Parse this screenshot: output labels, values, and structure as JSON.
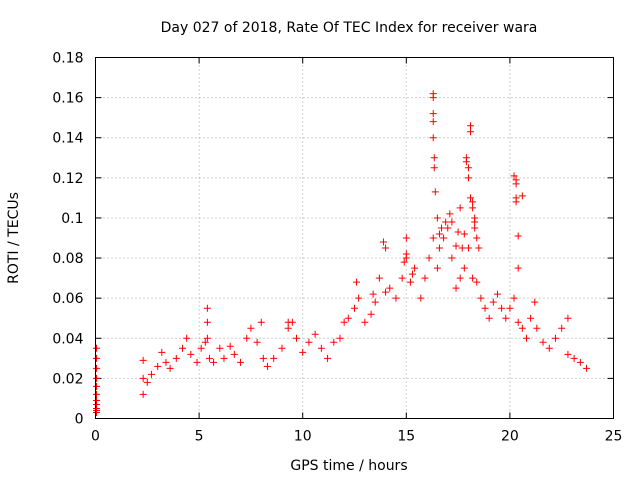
{
  "chart_data": {
    "type": "scatter",
    "title": "Day 027 of 2018, Rate Of TEC Index for receiver wara",
    "xlabel": "GPS time / hours",
    "ylabel": "ROTI / TECUs",
    "xlim": [
      0,
      25
    ],
    "ylim": [
      0,
      0.18
    ],
    "xticks": [
      0,
      5,
      10,
      15,
      20,
      25
    ],
    "xtick_labels": [
      "0",
      "5",
      "10",
      "15",
      "20",
      "25"
    ],
    "yticks": [
      0,
      0.02,
      0.04,
      0.06,
      0.08,
      0.1,
      0.12,
      0.14,
      0.16,
      0.18
    ],
    "ytick_labels": [
      "0",
      "0.02",
      "0.04",
      "0.06",
      "0.08",
      "0.1",
      "0.12",
      "0.14",
      "0.16",
      "0.18"
    ],
    "grid": true,
    "marker": "+",
    "color": "#ff0000",
    "series": [
      {
        "name": "ROTI",
        "x": [
          0.05,
          0.05,
          0.05,
          0.05,
          0.05,
          0.05,
          0.05,
          0.05,
          0.05,
          0.05,
          0.05,
          2.3,
          2.3,
          2.3,
          2.5,
          2.7,
          3.0,
          3.2,
          3.4,
          3.6,
          3.9,
          4.2,
          4.4,
          4.6,
          4.9,
          5.1,
          5.3,
          5.4,
          5.5,
          5.7,
          6.0,
          6.2,
          6.5,
          6.7,
          7.0,
          7.3,
          7.5,
          7.8,
          8.1,
          8.3,
          8.6,
          9.0,
          9.3,
          9.5,
          9.7,
          10.0,
          10.3,
          10.6,
          10.9,
          11.2,
          11.5,
          11.8,
          12.0,
          12.2,
          12.5,
          12.7,
          13.0,
          13.3,
          13.5,
          13.7,
          14.0,
          14.2,
          14.5,
          14.8,
          15.0,
          15.2,
          15.4,
          15.7,
          15.9,
          16.1,
          16.3,
          16.5,
          16.6,
          16.8,
          17.0,
          17.2,
          17.4,
          17.6,
          17.8,
          18.0,
          18.2,
          18.4,
          18.6,
          18.8,
          19.0,
          19.2,
          19.4,
          19.6,
          19.8,
          20.0,
          20.2,
          20.4,
          20.6,
          20.8,
          21.0,
          21.3,
          21.6,
          21.9,
          22.2,
          22.5,
          22.8,
          23.1,
          23.4,
          23.7,
          5.4,
          5.4,
          8.0,
          13.9,
          14.0,
          15.0,
          15.0,
          16.3,
          16.3,
          16.3,
          16.3,
          16.3,
          16.35,
          16.35,
          16.4,
          16.5,
          16.6,
          16.7,
          16.9,
          17.1,
          17.2,
          17.4,
          17.5,
          17.6,
          17.7,
          17.8,
          17.9,
          17.9,
          18.0,
          18.0,
          18.1,
          18.1,
          18.1,
          18.2,
          18.2,
          18.3,
          18.3,
          18.3,
          18.4,
          18.5,
          20.2,
          20.3,
          20.3,
          20.3,
          20.3,
          20.4,
          20.4,
          20.6,
          14.9,
          15.3,
          12.6,
          13.4,
          21.2,
          22.8,
          9.3
        ],
        "y": [
          0.035,
          0.03,
          0.025,
          0.02,
          0.016,
          0.012,
          0.009,
          0.007,
          0.005,
          0.004,
          0.003,
          0.029,
          0.02,
          0.012,
          0.018,
          0.022,
          0.026,
          0.033,
          0.028,
          0.025,
          0.03,
          0.035,
          0.04,
          0.032,
          0.028,
          0.035,
          0.038,
          0.04,
          0.03,
          0.028,
          0.035,
          0.03,
          0.036,
          0.032,
          0.028,
          0.04,
          0.045,
          0.038,
          0.03,
          0.026,
          0.03,
          0.035,
          0.045,
          0.048,
          0.04,
          0.033,
          0.038,
          0.042,
          0.035,
          0.03,
          0.038,
          0.04,
          0.048,
          0.05,
          0.055,
          0.06,
          0.048,
          0.052,
          0.058,
          0.07,
          0.063,
          0.065,
          0.06,
          0.07,
          0.082,
          0.068,
          0.075,
          0.06,
          0.07,
          0.08,
          0.09,
          0.075,
          0.085,
          0.09,
          0.095,
          0.08,
          0.065,
          0.07,
          0.075,
          0.085,
          0.07,
          0.068,
          0.06,
          0.055,
          0.05,
          0.058,
          0.062,
          0.055,
          0.05,
          0.055,
          0.06,
          0.048,
          0.045,
          0.04,
          0.05,
          0.045,
          0.038,
          0.035,
          0.04,
          0.045,
          0.032,
          0.03,
          0.028,
          0.025,
          0.055,
          0.048,
          0.048,
          0.088,
          0.085,
          0.09,
          0.08,
          0.162,
          0.16,
          0.152,
          0.148,
          0.14,
          0.13,
          0.125,
          0.113,
          0.1,
          0.092,
          0.095,
          0.098,
          0.102,
          0.098,
          0.086,
          0.093,
          0.105,
          0.085,
          0.092,
          0.13,
          0.128,
          0.125,
          0.12,
          0.146,
          0.143,
          0.11,
          0.108,
          0.105,
          0.1,
          0.095,
          0.098,
          0.09,
          0.085,
          0.121,
          0.119,
          0.117,
          0.11,
          0.108,
          0.091,
          0.075,
          0.111,
          0.078,
          0.072,
          0.068,
          0.062,
          0.058,
          0.05,
          0.048
        ]
      }
    ]
  }
}
